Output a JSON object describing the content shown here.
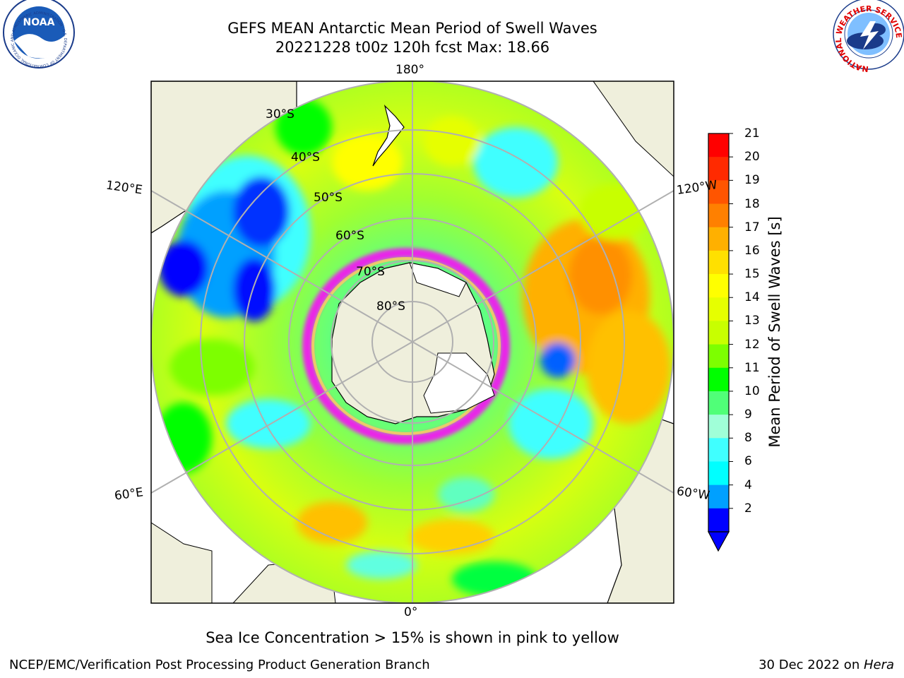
{
  "header": {
    "title_line1": "GEFS MEAN Antarctic Mean Period of Swell Waves",
    "title_line2": "20221228 t00z 120h fcst   Max: 18.66"
  },
  "logos": {
    "noaa": {
      "text": "NOAA",
      "ring_text": "NATIONAL OCEANIC AND ATMOSPHERIC ADMINISTRATION · U.S. DEPARTMENT OF COMMERCE"
    },
    "nws": {
      "ring_text": "NATIONAL WEATHER SERVICE"
    }
  },
  "map": {
    "longitude_labels": {
      "top": "180°",
      "bottom": "0°",
      "left_upper": "120°E",
      "left_lower": "60°E",
      "right_upper": "120°W",
      "right_lower": "60°W"
    },
    "latitude_labels": [
      "30°S",
      "40°S",
      "50°S",
      "60°S",
      "70°S",
      "80°S"
    ]
  },
  "colorbar": {
    "title": "Mean Period of Swell Waves [s]",
    "ticks": [
      "21",
      "20",
      "19",
      "18",
      "17",
      "16",
      "15",
      "14",
      "13",
      "12",
      "11",
      "10",
      "9",
      "8",
      "6",
      "4",
      "2"
    ],
    "colors": [
      "#ff0000",
      "#ff2a00",
      "#ff5500",
      "#ff8000",
      "#ffb000",
      "#ffe000",
      "#ffff00",
      "#e6ff00",
      "#c8ff00",
      "#7dff00",
      "#00ff00",
      "#50ff78",
      "#a0ffd8",
      "#40ffff",
      "#00ffff",
      "#00a0ff",
      "#0000ff"
    ]
  },
  "notes": {
    "sea_ice": "Sea Ice Concentration > 15% is shown in pink to yellow"
  },
  "footer": {
    "left": "NCEP/EMC/Verification Post Processing Product Generation Branch",
    "date": "30 Dec 2022 on ",
    "host": "Hera"
  }
}
